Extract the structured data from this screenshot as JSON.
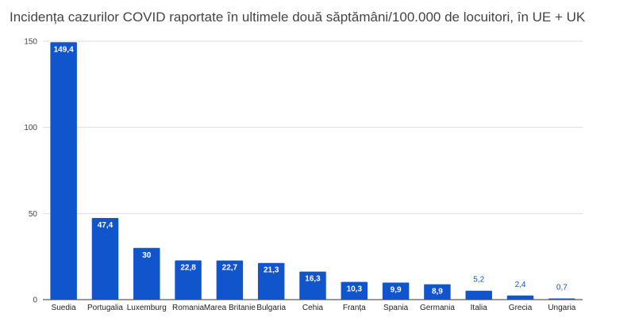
{
  "chart_data": {
    "type": "bar",
    "title": "Incidența cazurilor COVID raportate în ultimele două săptămâni/100.000 de locuitori, în UE + UK",
    "categories": [
      "Suedia",
      "Portugalia",
      "Luxemburg",
      "Romania",
      "Marea Britanie",
      "Bulgaria",
      "Cehia",
      "Franța",
      "Spania",
      "Germania",
      "Italia",
      "Grecia",
      "Ungaria"
    ],
    "values": [
      149.4,
      47.4,
      30,
      22.8,
      22.7,
      21.3,
      16.3,
      10.3,
      9.9,
      8.9,
      5.2,
      2.4,
      0.7
    ],
    "data_labels": [
      "149,4",
      "47,4",
      "30",
      "22,8",
      "22,7",
      "21,3",
      "16,3",
      "10,3",
      "9,9",
      "8,9",
      "5,2",
      "2,4",
      "0,7"
    ],
    "ylim": [
      0,
      150
    ],
    "yticks": [
      0,
      50,
      100,
      150
    ],
    "xlabel": "",
    "ylabel": "",
    "grid": true,
    "legend": "none",
    "bar_color": "#1155cc",
    "grid_color": "#dddddd"
  }
}
